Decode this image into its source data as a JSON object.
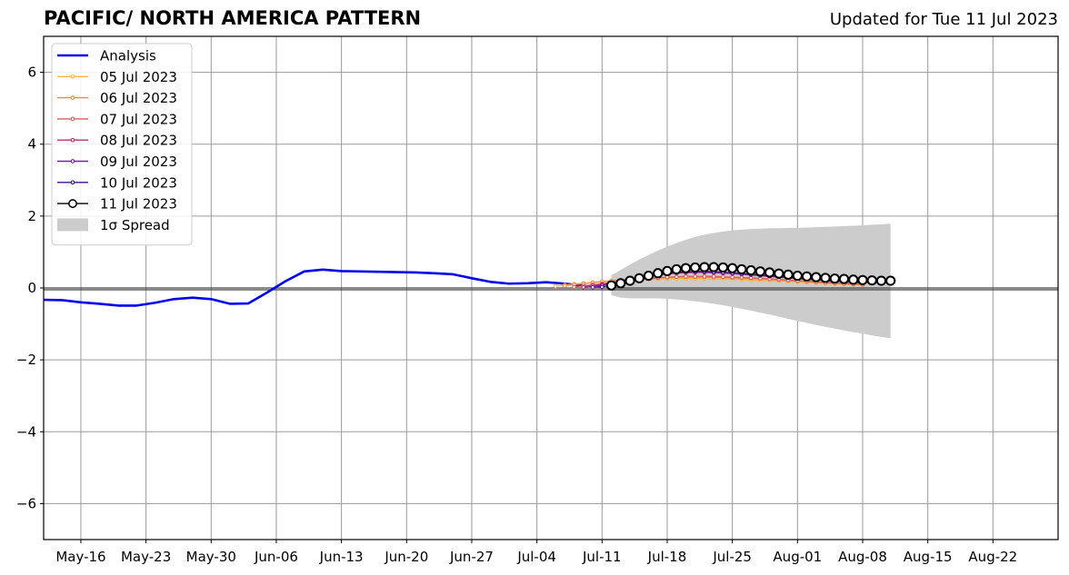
{
  "header": {
    "title": "PACIFIC/ NORTH AMERICA PATTERN",
    "updated": "Updated for Tue 11 Jul 2023"
  },
  "chart_data": {
    "type": "line",
    "title": "PACIFIC/ NORTH AMERICA PATTERN",
    "subtitle": "Updated for Tue 11 Jul 2023",
    "xlabel": "",
    "ylabel": "",
    "xlim": [
      "2023-05-12",
      "2023-08-29"
    ],
    "ylim": [
      -7,
      7
    ],
    "grid": true,
    "legend_position": "top-left",
    "x_tick_labels": [
      "May-16",
      "May-23",
      "May-30",
      "Jun-06",
      "Jun-13",
      "Jun-20",
      "Jun-27",
      "Jul-04",
      "Jul-11",
      "Jul-18",
      "Jul-25",
      "Aug-01",
      "Aug-08",
      "Aug-15",
      "Aug-22"
    ],
    "x_tick_dates": [
      "2023-05-16",
      "2023-05-23",
      "2023-05-30",
      "2023-06-06",
      "2023-06-13",
      "2023-06-20",
      "2023-06-27",
      "2023-07-04",
      "2023-07-11",
      "2023-07-18",
      "2023-07-25",
      "2023-08-01",
      "2023-08-08",
      "2023-08-15",
      "2023-08-22"
    ],
    "y_ticks": [
      6,
      4,
      2,
      0,
      -2,
      -4,
      -6
    ],
    "y_tick_labels": [
      "6",
      "4",
      "2",
      "0",
      "−2",
      "−4",
      "−6"
    ],
    "analysis": {
      "name": "Analysis",
      "color": "#0000ee",
      "points": [
        [
          "2023-05-12",
          -0.33
        ],
        [
          "2023-05-14",
          -0.34
        ],
        [
          "2023-05-16",
          -0.4
        ],
        [
          "2023-05-18",
          -0.44
        ],
        [
          "2023-05-20",
          -0.49
        ],
        [
          "2023-05-22",
          -0.49
        ],
        [
          "2023-05-24",
          -0.41
        ],
        [
          "2023-05-26",
          -0.31
        ],
        [
          "2023-05-28",
          -0.27
        ],
        [
          "2023-05-30",
          -0.31
        ],
        [
          "2023-06-01",
          -0.44
        ],
        [
          "2023-06-03",
          -0.43
        ],
        [
          "2023-06-05",
          -0.13
        ],
        [
          "2023-06-07",
          0.19
        ],
        [
          "2023-06-09",
          0.46
        ],
        [
          "2023-06-11",
          0.51
        ],
        [
          "2023-06-13",
          0.47
        ],
        [
          "2023-06-15",
          0.46
        ],
        [
          "2023-06-17",
          0.45
        ],
        [
          "2023-06-19",
          0.44
        ],
        [
          "2023-06-21",
          0.43
        ],
        [
          "2023-06-23",
          0.41
        ],
        [
          "2023-06-25",
          0.38
        ],
        [
          "2023-06-27",
          0.27
        ],
        [
          "2023-06-29",
          0.17
        ],
        [
          "2023-07-01",
          0.12
        ],
        [
          "2023-07-03",
          0.13
        ],
        [
          "2023-07-05",
          0.16
        ],
        [
          "2023-07-07",
          0.12
        ],
        [
          "2023-07-09",
          0.06
        ],
        [
          "2023-07-11",
          0.05
        ]
      ]
    },
    "forecasts": [
      {
        "name": "05 Jul 2023",
        "color": "#f5b841",
        "start": "2023-07-06",
        "values": [
          0.05,
          0.08,
          0.11,
          0.13,
          0.15,
          0.17,
          0.19,
          0.21,
          0.22,
          0.23,
          0.24,
          0.25,
          0.26,
          0.26,
          0.26,
          0.26,
          0.26,
          0.25,
          0.25,
          0.24,
          0.23,
          0.22,
          0.21,
          0.2,
          0.19,
          0.18,
          0.17,
          0.15,
          0.14,
          0.12,
          0.11,
          0.1,
          0.09,
          0.08
        ]
      },
      {
        "name": "06 Jul 2023",
        "color": "#ef8a3e",
        "start": "2023-07-07",
        "values": [
          0.06,
          0.09,
          0.12,
          0.15,
          0.18,
          0.2,
          0.22,
          0.24,
          0.26,
          0.27,
          0.28,
          0.29,
          0.3,
          0.3,
          0.3,
          0.3,
          0.29,
          0.29,
          0.28,
          0.27,
          0.26,
          0.25,
          0.24,
          0.22,
          0.21,
          0.19,
          0.18,
          0.16,
          0.15,
          0.13,
          0.12,
          0.11,
          0.1
        ]
      },
      {
        "name": "07 Jul 2023",
        "color": "#df5a5c",
        "start": "2023-07-08",
        "values": [
          0.03,
          0.06,
          0.09,
          0.12,
          0.15,
          0.18,
          0.21,
          0.24,
          0.26,
          0.28,
          0.3,
          0.31,
          0.32,
          0.32,
          0.32,
          0.32,
          0.31,
          0.3,
          0.29,
          0.28,
          0.27,
          0.25,
          0.24,
          0.22,
          0.2,
          0.19,
          0.17,
          0.15,
          0.14,
          0.12,
          0.11,
          0.1
        ]
      },
      {
        "name": "08 Jul 2023",
        "color": "#b2317d",
        "start": "2023-07-09",
        "values": [
          0.02,
          0.06,
          0.1,
          0.15,
          0.2,
          0.25,
          0.29,
          0.33,
          0.36,
          0.39,
          0.41,
          0.42,
          0.43,
          0.43,
          0.42,
          0.41,
          0.4,
          0.38,
          0.36,
          0.34,
          0.32,
          0.3,
          0.28,
          0.26,
          0.24,
          0.22,
          0.2,
          0.18,
          0.17,
          0.15,
          0.14
        ]
      },
      {
        "name": "09 Jul 2023",
        "color": "#7d1fa0",
        "start": "2023-07-10",
        "values": [
          0.02,
          0.07,
          0.12,
          0.18,
          0.24,
          0.29,
          0.34,
          0.38,
          0.41,
          0.43,
          0.45,
          0.45,
          0.45,
          0.44,
          0.43,
          0.41,
          0.39,
          0.37,
          0.35,
          0.33,
          0.31,
          0.29,
          0.27,
          0.25,
          0.23,
          0.21,
          0.19,
          0.18,
          0.16,
          0.15
        ]
      },
      {
        "name": "10 Jul 2023",
        "color": "#3d0f8f",
        "start": "2023-07-11",
        "values": [
          0.03,
          0.08,
          0.14,
          0.2,
          0.26,
          0.31,
          0.36,
          0.4,
          0.43,
          0.45,
          0.46,
          0.46,
          0.45,
          0.44,
          0.42,
          0.4,
          0.38,
          0.36,
          0.34,
          0.32,
          0.3,
          0.28,
          0.26,
          0.24,
          0.22,
          0.2,
          0.19,
          0.17,
          0.16
        ]
      },
      {
        "name": "11 Jul 2023",
        "color": "#000000",
        "start": "2023-07-12",
        "marker": "open-circle",
        "values": [
          0.07,
          0.13,
          0.2,
          0.27,
          0.34,
          0.41,
          0.47,
          0.52,
          0.55,
          0.57,
          0.58,
          0.58,
          0.57,
          0.55,
          0.52,
          0.49,
          0.46,
          0.43,
          0.4,
          0.37,
          0.34,
          0.32,
          0.3,
          0.28,
          0.26,
          0.25,
          0.23,
          0.22,
          0.21,
          0.2,
          0.2
        ]
      }
    ],
    "spread": {
      "name": "1σ Spread",
      "color": "#cccccc",
      "start": "2023-07-12",
      "upper": [
        0.35,
        0.5,
        0.65,
        0.79,
        0.92,
        1.04,
        1.15,
        1.25,
        1.34,
        1.42,
        1.48,
        1.53,
        1.57,
        1.6,
        1.62,
        1.64,
        1.65,
        1.66,
        1.66,
        1.67,
        1.67,
        1.68,
        1.69,
        1.7,
        1.71,
        1.72,
        1.73,
        1.74,
        1.76,
        1.77,
        1.79
      ],
      "lower": [
        -0.2,
        -0.27,
        -0.29,
        -0.29,
        -0.29,
        -0.29,
        -0.3,
        -0.32,
        -0.34,
        -0.37,
        -0.4,
        -0.44,
        -0.48,
        -0.53,
        -0.58,
        -0.63,
        -0.69,
        -0.74,
        -0.8,
        -0.86,
        -0.92,
        -0.97,
        -1.03,
        -1.08,
        -1.13,
        -1.18,
        -1.23,
        -1.27,
        -1.32,
        -1.36,
        -1.4
      ]
    }
  }
}
